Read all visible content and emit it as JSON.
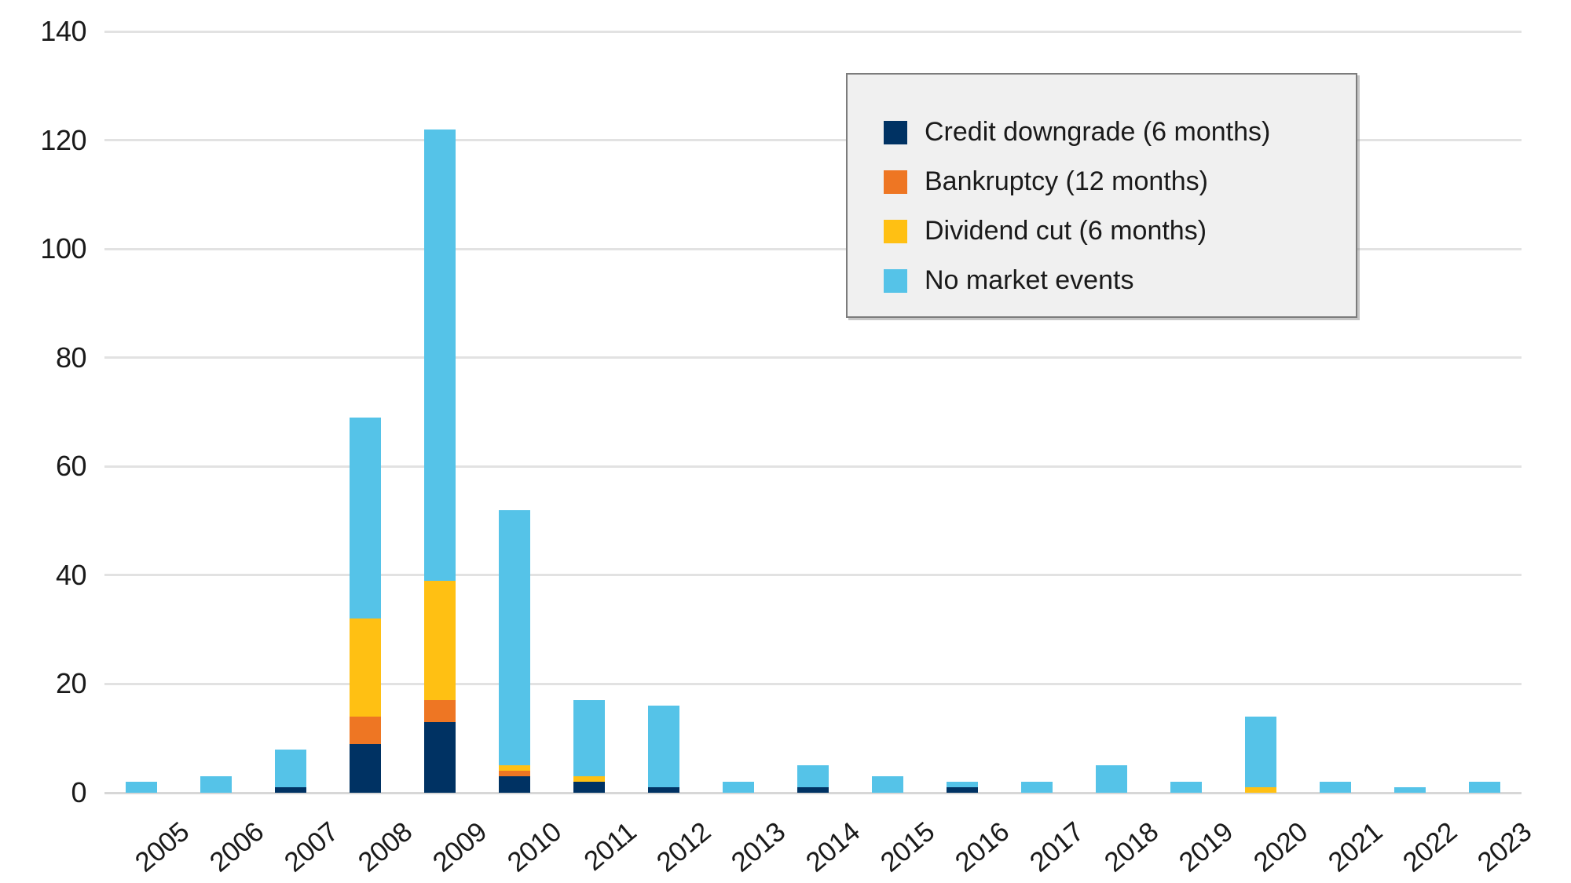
{
  "chart_data": {
    "type": "bar",
    "stacked": true,
    "title": "",
    "xlabel": "",
    "ylabel": "",
    "categories": [
      "2005",
      "2006",
      "2007",
      "2008",
      "2009",
      "2010",
      "2011",
      "2012",
      "2013",
      "2014",
      "2015",
      "2016",
      "2017",
      "2018",
      "2019",
      "2020",
      "2021",
      "2022",
      "2023"
    ],
    "series": [
      {
        "name": "Credit downgrade (6 months)",
        "color": "#003263",
        "values": [
          0,
          0,
          1,
          9,
          13,
          3,
          2,
          1,
          0,
          1,
          0,
          1,
          0,
          0,
          0,
          0,
          0,
          0,
          0
        ]
      },
      {
        "name": "Bankruptcy (12 months)",
        "color": "#EE7623",
        "values": [
          0,
          0,
          0,
          5,
          4,
          1,
          0,
          0,
          0,
          0,
          0,
          0,
          0,
          0,
          0,
          0,
          0,
          0,
          0
        ]
      },
      {
        "name": "Dividend cut (6 months)",
        "color": "#FFC013",
        "values": [
          0,
          0,
          0,
          18,
          22,
          1,
          1,
          0,
          0,
          0,
          0,
          0,
          0,
          0,
          0,
          1,
          0,
          0,
          0
        ]
      },
      {
        "name": "No market events",
        "color": "#55C3E8",
        "values": [
          2,
          3,
          7,
          37,
          83,
          47,
          14,
          15,
          2,
          4,
          3,
          1,
          2,
          5,
          2,
          13,
          2,
          1,
          2
        ]
      }
    ],
    "totals": [
      2,
      3,
      8,
      69,
      122,
      52,
      17,
      16,
      2,
      5,
      3,
      2,
      2,
      5,
      2,
      14,
      2,
      1,
      2
    ],
    "ylim": [
      0,
      140
    ],
    "yticks": [
      0,
      20,
      40,
      60,
      80,
      100,
      120,
      140
    ],
    "grid": true,
    "legend_position": "top-right",
    "x_tick_rotation_deg": -40
  },
  "palette": {
    "background": "#FFFFFF",
    "text": "#1A1A1A",
    "gridline": "#E2E2E2",
    "baseline": "#D7D7D7",
    "legend_background": "#F0F0F0",
    "legend_border": "#7C7C7C"
  }
}
